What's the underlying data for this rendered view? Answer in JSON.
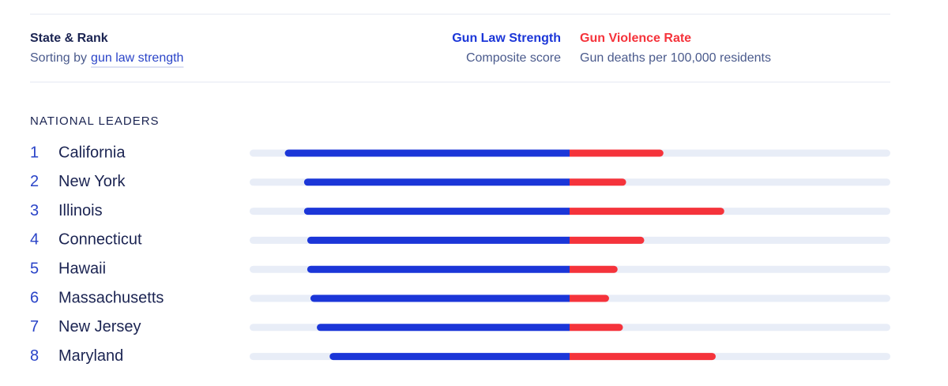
{
  "chart_data": {
    "type": "diverging-bar",
    "header": {
      "title": "State & Rank",
      "sort_prefix": "Sorting by",
      "sort_link": "gun law strength"
    },
    "group_title": "NATIONAL LEADERS",
    "ranks": [
      1,
      2,
      3,
      4,
      5,
      6,
      7,
      8
    ],
    "categories": [
      "California",
      "New York",
      "Illinois",
      "Connecticut",
      "Hawaii",
      "Massachusetts",
      "New Jersey",
      "Maryland"
    ],
    "series": [
      {
        "name": "Gun Law Strength",
        "subtitle": "Composite score",
        "color": "#1b36d8",
        "side": "left",
        "xlim": [
          0,
          100
        ],
        "values": [
          89,
          83,
          83,
          82,
          82,
          81,
          79,
          75
        ]
      },
      {
        "name": "Gun Violence Rate",
        "subtitle": "Gun deaths per 100,000 residents",
        "color": "#f5333b",
        "side": "right",
        "xlim": [
          0,
          30
        ],
        "values": [
          8.8,
          5.3,
          14.5,
          7.0,
          4.5,
          3.7,
          5.0,
          13.7
        ]
      }
    ]
  }
}
